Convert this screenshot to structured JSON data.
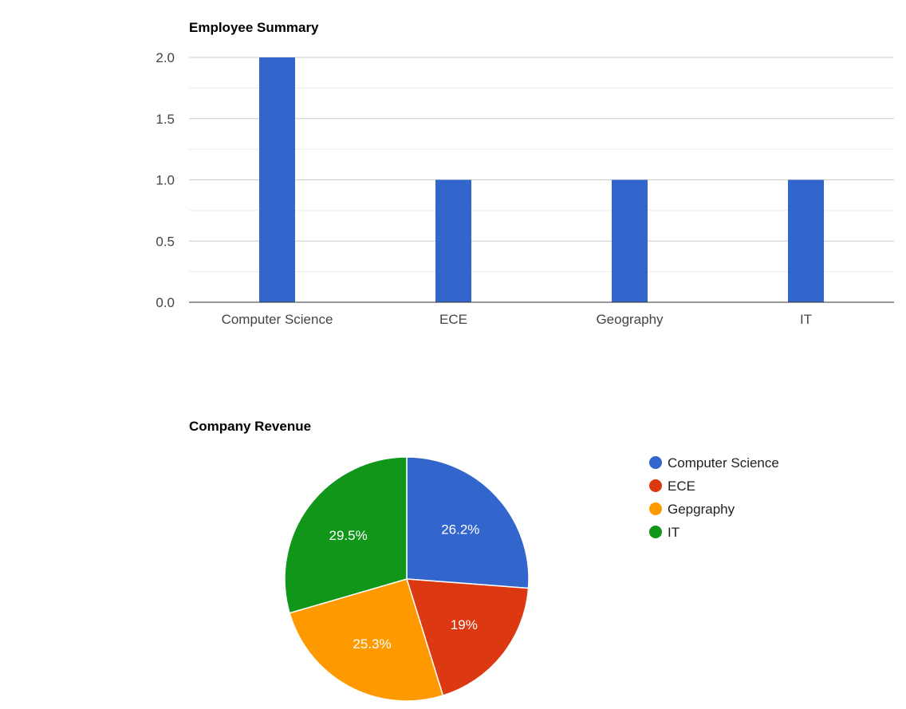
{
  "chart_data": [
    {
      "type": "bar",
      "title": "Employee Summary",
      "xlabel": "",
      "ylabel": "",
      "categories": [
        "Computer Science",
        "ECE",
        "Geography",
        "IT"
      ],
      "values": [
        2,
        1,
        1,
        1
      ],
      "ylim": [
        0,
        2
      ],
      "yticks": [
        "0.0",
        "0.5",
        "1.0",
        "1.5",
        "2.0"
      ],
      "ytick_values": [
        0,
        0.5,
        1,
        1.5,
        2
      ],
      "grid": true,
      "legend": "none",
      "color": "#3366cc"
    },
    {
      "type": "pie",
      "title": "Company Revenue",
      "legend": "right",
      "slices": [
        {
          "label": "Computer Science",
          "percent": 26.2,
          "display": "26.2%",
          "color": "#3366cc"
        },
        {
          "label": "ECE",
          "percent": 19.0,
          "display": "19%",
          "color": "#dc3912"
        },
        {
          "label": "Gepgraphy",
          "percent": 25.3,
          "display": "25.3%",
          "color": "#ff9900"
        },
        {
          "label": "IT",
          "percent": 29.5,
          "display": "29.5%",
          "color": "#109618"
        }
      ]
    }
  ]
}
